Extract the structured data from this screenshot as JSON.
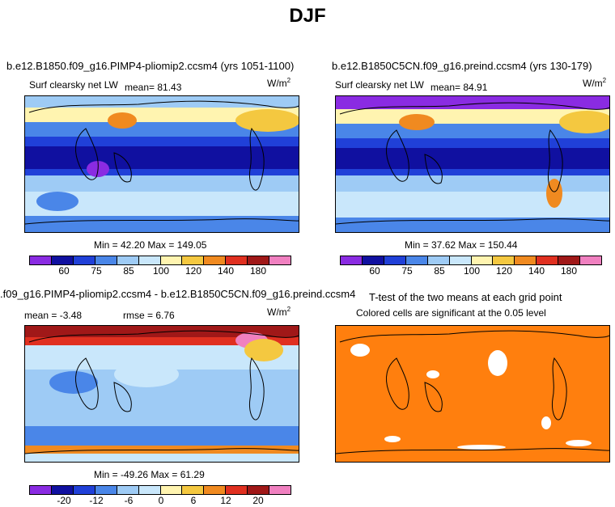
{
  "title": "DJF",
  "panels": [
    {
      "case": "b.e12.B1850.f09_g16.PIMP4-pliomip2.ccsm4 (yrs 1051-1100)",
      "variable": "Surf clearsky net LW",
      "mean_label": "mean=  81.43",
      "units": "W/m",
      "units_exp": "2",
      "minmax": "Min =  42.20 Max = 149.05",
      "ticks": [
        "60",
        "75",
        "85",
        "100",
        "120",
        "140",
        "180"
      ]
    },
    {
      "case": "b.e12.B1850C5CN.f09_g16.preind.ccsm4 (yrs 130-179)",
      "variable": "Surf clearsky net LW",
      "mean_label": "mean=  84.91",
      "units": "W/m",
      "units_exp": "2",
      "minmax": "Min =  37.62 Max = 150.44",
      "ticks": [
        "60",
        "75",
        "85",
        "100",
        "120",
        "140",
        "180"
      ]
    },
    {
      "case": ".f09_g16.PIMP4-pliomip2.ccsm4 - b.e12.B1850C5CN.f09_g16.preind.ccsm4",
      "mean_label": "mean =  -3.48",
      "rmse_label": "rmse =   6.76",
      "units": "W/m",
      "units_exp": "2",
      "minmax": "Min = -49.26 Max =  61.29",
      "ticks": [
        "-20",
        "-12",
        "-6",
        "0",
        "6",
        "12",
        "20"
      ]
    },
    {
      "case": "T-test of the two means at each grid point",
      "subtitle": "Colored cells are significant at the 0.05 level"
    }
  ],
  "colors": {
    "abs_scale": [
      "#8a2be2",
      "#1010a0",
      "#2040d8",
      "#4a86e8",
      "#9ecbf5",
      "#c9e7fb",
      "#fff4b0",
      "#f4c840",
      "#f08a20",
      "#e03020",
      "#a01818",
      "#f080c0"
    ],
    "diff_scale": [
      "#8a2be2",
      "#1010a0",
      "#2040d8",
      "#4a86e8",
      "#9ecbf5",
      "#c9e7fb",
      "#fff4b0",
      "#f4c840",
      "#f08a20",
      "#e03020",
      "#a01818",
      "#f080c0"
    ],
    "ttest": "#ff7f0e"
  }
}
